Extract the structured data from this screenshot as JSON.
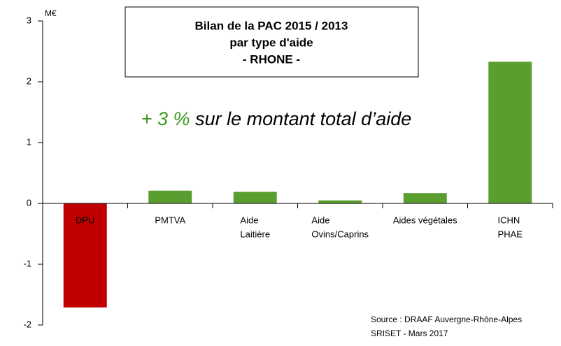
{
  "chart_data": {
    "type": "bar",
    "title": [
      "Bilan de la PAC 2015 / 2013",
      "par type d'aide",
      "- RHONE -"
    ],
    "annotation": {
      "highlight": "+ 3 %",
      "text": "sur le montant total d’aide",
      "highlight_color": "#3a9a1c"
    },
    "y_unit": "M€",
    "categories": [
      [
        "DPU"
      ],
      [
        "PMTVA"
      ],
      [
        "Aide",
        "Laitière"
      ],
      [
        "Aide",
        "Ovins/Caprins"
      ],
      [
        "Aides végétales"
      ],
      [
        "ICHN",
        "PHAE"
      ]
    ],
    "values": [
      -1.71,
      0.21,
      0.19,
      0.05,
      0.17,
      2.33
    ],
    "colors": [
      "#c00000",
      "#5a9e2f",
      "#5a9e2f",
      "#5a9e2f",
      "#5a9e2f",
      "#5a9e2f"
    ],
    "ylim": [
      -2,
      3
    ],
    "yticks": [
      -2,
      -1,
      0,
      1,
      2,
      3
    ],
    "source": [
      "Source : DRAAF Auvergne-Rhône-Alpes",
      "SRISET - Mars 2017"
    ]
  }
}
